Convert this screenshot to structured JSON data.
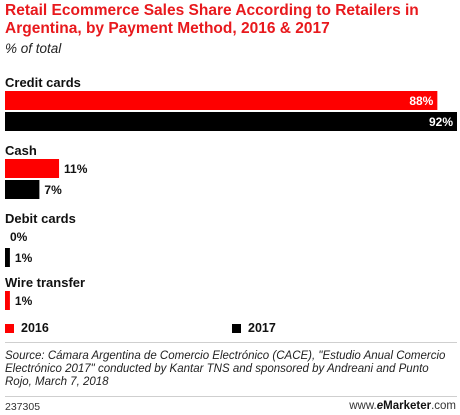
{
  "chart_data": {
    "type": "bar",
    "orientation": "horizontal",
    "title": "Retail Ecommerce Sales Share According to Retailers in Argentina, by Payment Method, 2016 & 2017",
    "subtitle": "% of total",
    "categories": [
      "Credit cards",
      "Cash",
      "Debit cards",
      "Wire transfer"
    ],
    "series": [
      {
        "name": "2016",
        "color": "#fe0000",
        "values": [
          88,
          11,
          0,
          1
        ],
        "labels": [
          "88%",
          "11%",
          "0%",
          "1%"
        ]
      },
      {
        "name": "2017",
        "color": "#000000",
        "values": [
          92,
          7,
          1,
          null
        ],
        "labels": [
          "92%",
          "7%",
          "1%",
          ""
        ]
      }
    ],
    "xlim": [
      0,
      92
    ],
    "grid": false,
    "legend_position": "bottom"
  },
  "footer": {
    "source": "Source: Cámara Argentina de Comercio Electrónico (CACE), \"Estudio Anual Comercio Electrónico 2017\" conducted by Kantar TNS and sponsored by Andreani and Punto Rojo, March 7, 2018",
    "chart_id": "237305",
    "brand_prefix": "www.",
    "brand_e": "e",
    "brand_name": "Marketer",
    "brand_suffix": ".com"
  }
}
